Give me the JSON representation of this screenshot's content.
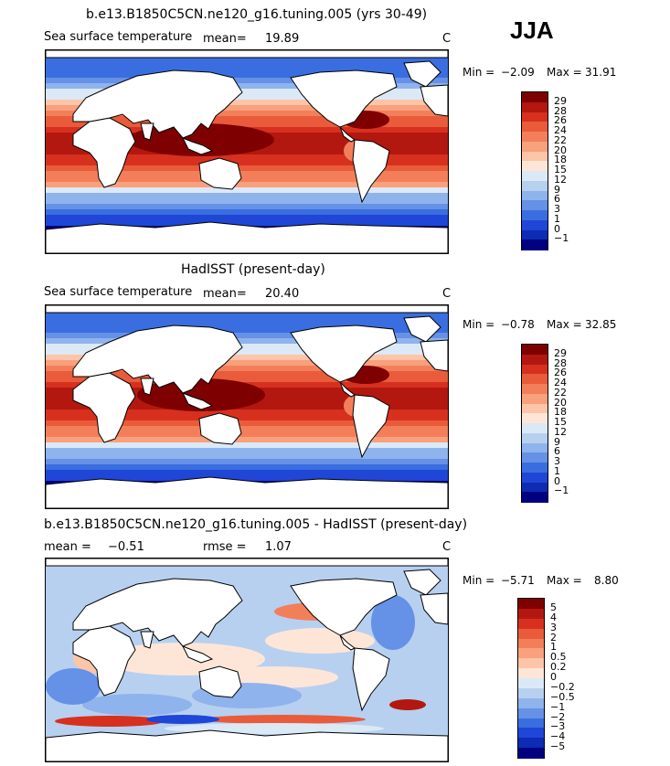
{
  "season": "JJA",
  "panels": [
    {
      "id": "model",
      "title": "b.e13.B1850C5CN.ne120_g16.tuning.005 (yrs 30-49)",
      "variable": "Sea surface temperature",
      "mean_label": "mean=",
      "mean_value": "19.89",
      "units": "C",
      "min_label": "Min =",
      "min_value": "−2.09",
      "max_label": "Max =",
      "max_value": "31.91",
      "colorbar_labels": [
        "29",
        "28",
        "26",
        "24",
        "22",
        "20",
        "18",
        "15",
        "12",
        "9",
        "6",
        "3",
        "1",
        "0",
        "−1"
      ],
      "colorbar_colors": [
        "#7f0000",
        "#b2180f",
        "#d7301f",
        "#e95b3a",
        "#f37f5a",
        "#f9a07c",
        "#fcc5a8",
        "#fde6d8",
        "#dbe9f6",
        "#b7d0f0",
        "#8fb3ec",
        "#6591e6",
        "#3a6ee0",
        "#1f46d6",
        "#0d2bb3",
        "#000080"
      ]
    },
    {
      "id": "obs",
      "title": "HadISST (present-day)",
      "variable": "Sea surface temperature",
      "mean_label": "mean=",
      "mean_value": "20.40",
      "units": "C",
      "min_label": "Min =",
      "min_value": "−0.78",
      "max_label": "Max =",
      "max_value": "32.85",
      "colorbar_labels": [
        "29",
        "28",
        "26",
        "24",
        "22",
        "20",
        "18",
        "15",
        "12",
        "9",
        "6",
        "3",
        "1",
        "0",
        "−1"
      ],
      "colorbar_colors": [
        "#7f0000",
        "#b2180f",
        "#d7301f",
        "#e95b3a",
        "#f37f5a",
        "#f9a07c",
        "#fcc5a8",
        "#fde6d8",
        "#dbe9f6",
        "#b7d0f0",
        "#8fb3ec",
        "#6591e6",
        "#3a6ee0",
        "#1f46d6",
        "#0d2bb3",
        "#000080"
      ]
    },
    {
      "id": "diff",
      "title": "b.e13.B1850C5CN.ne120_g16.tuning.005 - HadISST (present-day)",
      "mean_label": "mean =",
      "mean_value": "−0.51",
      "rmse_label": "rmse =",
      "rmse_value": "1.07",
      "units": "C",
      "min_label": "Min =",
      "min_value": "−5.71",
      "max_label": "Max =",
      "max_value": "8.80",
      "colorbar_labels": [
        "5",
        "4",
        "3",
        "2",
        "1",
        "0.5",
        "0.2",
        "0",
        "−0.2",
        "−0.5",
        "−1",
        "−2",
        "−3",
        "−4",
        "−5"
      ],
      "colorbar_colors": [
        "#7f0000",
        "#b2180f",
        "#d7301f",
        "#e95b3a",
        "#f37f5a",
        "#f9a07c",
        "#fcc5a8",
        "#fde6d8",
        "#dbe9f6",
        "#b7d0f0",
        "#8fb3ec",
        "#6591e6",
        "#3a6ee0",
        "#1f46d6",
        "#0d2bb3",
        "#000080"
      ]
    }
  ],
  "colors": {
    "land": "#ffffff",
    "coastline": "#000000"
  }
}
